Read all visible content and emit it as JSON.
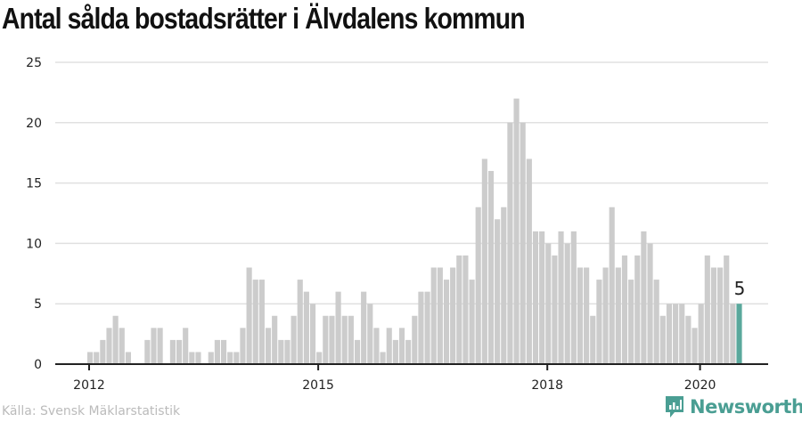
{
  "chart_data": {
    "type": "bar",
    "title": "Antal sålda bostadsrätter i Älvdalens kommun",
    "xlabel": "",
    "ylabel": "",
    "ylim": [
      0,
      25
    ],
    "yticks": [
      0,
      5,
      10,
      15,
      20,
      25
    ],
    "xticks": [
      {
        "label": "2012",
        "year": 2012
      },
      {
        "label": "2015",
        "year": 2015
      },
      {
        "label": "2018",
        "year": 2018
      },
      {
        "label": "2020",
        "year": 2020
      }
    ],
    "start": "2012-01",
    "end": "2020-07",
    "grid": true,
    "values": [
      1,
      1,
      2,
      3,
      4,
      3,
      1,
      0,
      0,
      2,
      3,
      3,
      0,
      2,
      2,
      3,
      1,
      1,
      0,
      1,
      2,
      2,
      1,
      1,
      3,
      8,
      7,
      7,
      3,
      4,
      2,
      2,
      4,
      7,
      6,
      5,
      1,
      4,
      4,
      6,
      4,
      4,
      2,
      6,
      5,
      3,
      1,
      3,
      2,
      3,
      2,
      4,
      6,
      6,
      8,
      8,
      7,
      8,
      9,
      9,
      7,
      13,
      17,
      16,
      12,
      13,
      20,
      22,
      20,
      17,
      11,
      11,
      10,
      9,
      11,
      10,
      11,
      8,
      8,
      4,
      7,
      8,
      13,
      8,
      9,
      7,
      9,
      11,
      10,
      7,
      4,
      5,
      5,
      5,
      4,
      3,
      5,
      9,
      8,
      8,
      9,
      5,
      5
    ],
    "highlight_label": "5",
    "colors": {
      "bar": "#cccccc",
      "highlight": "#5aa89c",
      "grid": "#e0e0e0",
      "axis": "#222222"
    }
  },
  "source": "Källa: Svensk Mäklarstatistik",
  "brand": "Newsworthy"
}
